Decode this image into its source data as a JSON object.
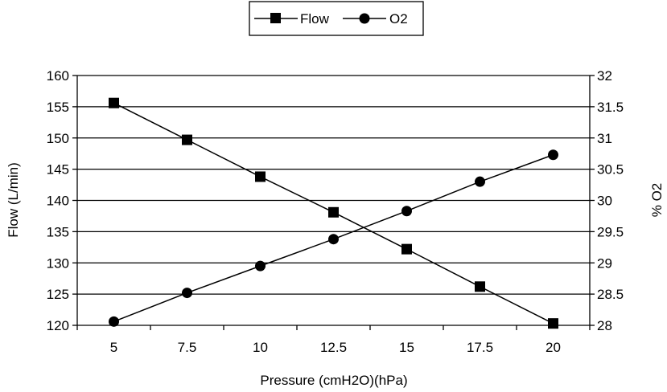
{
  "chart_data": {
    "type": "line",
    "title": "",
    "xlabel": "Pressure (cmH2O)(hPa)",
    "ylabel": "Flow (L/min)",
    "y2label": "% O2",
    "categories": [
      5,
      7.5,
      10,
      12.5,
      15,
      17.5,
      20
    ],
    "x_tick_labels": [
      "5",
      "7.5",
      "10",
      "12.5",
      "15",
      "17.5",
      "20"
    ],
    "ylim": [
      120,
      160
    ],
    "y_ticks": [
      120,
      125,
      130,
      135,
      140,
      145,
      150,
      155,
      160
    ],
    "y2lim": [
      28,
      32
    ],
    "y2_ticks": [
      "28",
      "28.5",
      "29",
      "29.5",
      "30",
      "30.5",
      "31",
      "31.5",
      "32"
    ],
    "grid": "horizontal",
    "legend_position": "top-center",
    "series": [
      {
        "name": "Flow",
        "axis": "left",
        "marker": "square",
        "color": "#000000",
        "values": [
          155.6,
          149.7,
          143.8,
          138.1,
          132.2,
          126.2,
          120.3
        ]
      },
      {
        "name": "O2",
        "axis": "right",
        "marker": "circle",
        "color": "#000000",
        "values": [
          28.06,
          28.52,
          28.95,
          29.38,
          29.83,
          30.3,
          30.73
        ]
      }
    ]
  }
}
